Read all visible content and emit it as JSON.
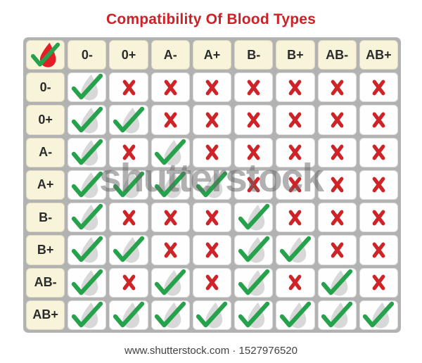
{
  "title": {
    "text": "Compatibility Of Blood Types"
  },
  "matrix": {
    "corner_icon": "blood-drop-check-icon",
    "column_headers": [
      "0-",
      "0+",
      "A-",
      "A+",
      "B-",
      "B+",
      "AB-",
      "AB+"
    ],
    "rows": [
      {
        "label": "0-",
        "cells": [
          "check",
          "cross",
          "cross",
          "cross",
          "cross",
          "cross",
          "cross",
          "cross"
        ]
      },
      {
        "label": "0+",
        "cells": [
          "check",
          "check",
          "cross",
          "cross",
          "cross",
          "cross",
          "cross",
          "cross"
        ]
      },
      {
        "label": "A-",
        "cells": [
          "check",
          "cross",
          "check",
          "cross",
          "cross",
          "cross",
          "cross",
          "cross"
        ]
      },
      {
        "label": "A+",
        "cells": [
          "check",
          "check",
          "check",
          "check",
          "cross",
          "cross",
          "cross",
          "cross"
        ]
      },
      {
        "label": "B-",
        "cells": [
          "check",
          "cross",
          "cross",
          "cross",
          "check",
          "cross",
          "cross",
          "cross"
        ]
      },
      {
        "label": "B+",
        "cells": [
          "check",
          "check",
          "cross",
          "cross",
          "check",
          "check",
          "cross",
          "cross"
        ]
      },
      {
        "label": "AB-",
        "cells": [
          "check",
          "cross",
          "check",
          "cross",
          "check",
          "cross",
          "check",
          "cross"
        ]
      },
      {
        "label": "AB+",
        "cells": [
          "check",
          "check",
          "check",
          "check",
          "check",
          "check",
          "check",
          "check"
        ]
      }
    ]
  },
  "icons": {
    "check": "drop-check-icon",
    "cross": "cross-icon",
    "corner": "blood-drop-check-icon"
  },
  "colors": {
    "title_red": "#cc2127",
    "check_green": "#27a24c",
    "cross_red": "#ce2428",
    "drop_red": "#e21f26",
    "drop_gray": "#d8d8d8",
    "header_bg": "#f8f4da",
    "cell_bg": "#fefefe",
    "grid_bg": "#b2b2b2"
  },
  "watermark": {
    "text": "shutterstock"
  },
  "footer": {
    "text": "www.shutterstock.com · 1527976520"
  }
}
